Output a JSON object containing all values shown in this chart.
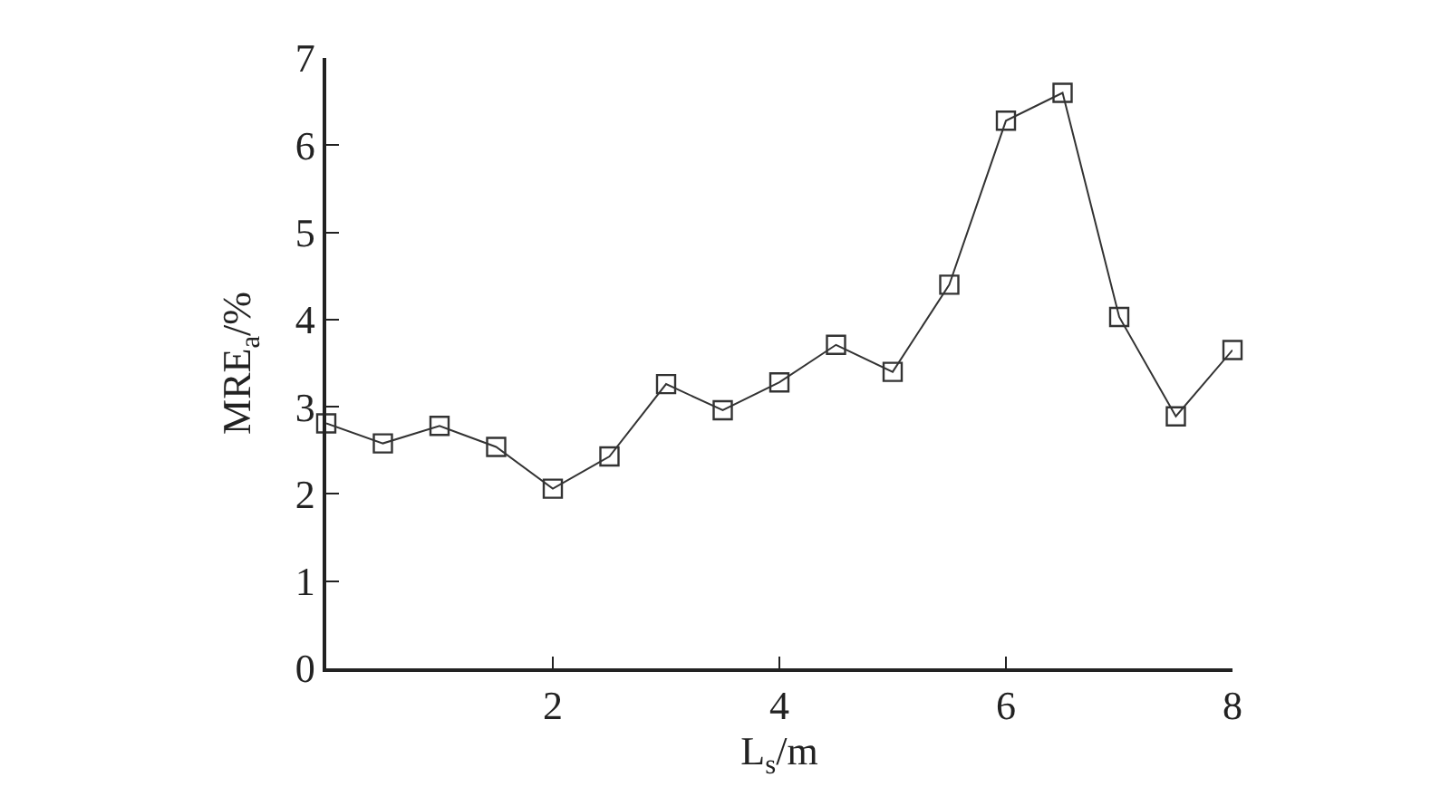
{
  "chart_data": {
    "type": "line",
    "xlabel": "L$_{s}$/m",
    "ylabel": "MRE$_{a}$/%",
    "x": [
      0,
      0.5,
      1,
      1.5,
      2,
      2.5,
      3,
      3.5,
      4,
      4.5,
      5,
      5.5,
      6,
      6.5,
      7,
      7.5,
      8
    ],
    "series": [
      {
        "color": "#333333",
        "values": [
          2.81,
          2.58,
          2.78,
          2.54,
          2.06,
          2.43,
          3.26,
          2.96,
          3.28,
          3.71,
          3.4,
          4.4,
          6.28,
          6.6,
          4.03,
          2.89,
          3.65
        ]
      }
    ],
    "xlim": [
      0,
      8
    ],
    "xticks": [
      2,
      4,
      6,
      8
    ],
    "ylim": [
      0,
      7
    ],
    "yticks": [
      0,
      1,
      2,
      3,
      4,
      5,
      6,
      7
    ],
    "grid": false,
    "marker": "square",
    "line_style": "solid"
  }
}
